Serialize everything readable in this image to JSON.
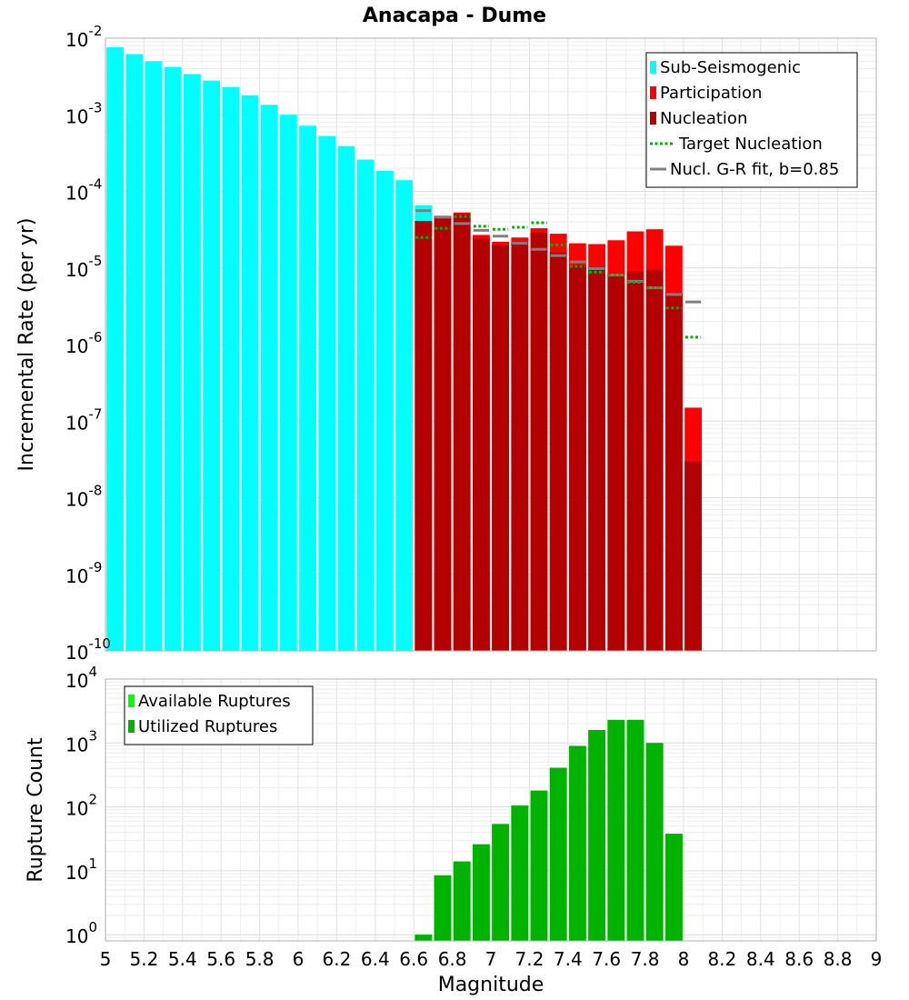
{
  "chart_data": [
    {
      "type": "bar",
      "title": "Anacapa - Dume",
      "xlabel": "",
      "ylabel": "Incremental Rate (per yr)",
      "yscale": "log",
      "ylim": [
        1e-10,
        0.01
      ],
      "xlim": [
        5,
        9
      ],
      "bin_width": 0.1,
      "y_ticks": [
        {
          "base": "10",
          "exp": "-2"
        },
        {
          "base": "10",
          "exp": "-3"
        },
        {
          "base": "10",
          "exp": "-4"
        },
        {
          "base": "10",
          "exp": "-5"
        },
        {
          "base": "10",
          "exp": "-6"
        },
        {
          "base": "10",
          "exp": "-7"
        },
        {
          "base": "10",
          "exp": "-8"
        },
        {
          "base": "10",
          "exp": "-9"
        },
        {
          "base": "10",
          "exp": "-10"
        }
      ],
      "legend_position": "top-right",
      "grid": true,
      "series": [
        {
          "name": "Sub-Seismogenic",
          "color": "#00ffff",
          "mark": "bar",
          "x": [
            5.05,
            5.15,
            5.25,
            5.35,
            5.45,
            5.55,
            5.65,
            5.75,
            5.85,
            5.95,
            6.05,
            6.15,
            6.25,
            6.35,
            6.45,
            6.55,
            6.65
          ],
          "values": [
            0.0076,
            0.0062,
            0.005,
            0.0042,
            0.0034,
            0.0028,
            0.0023,
            0.0018,
            0.00135,
            0.001,
            0.00072,
            0.00053,
            0.00039,
            0.00026,
            0.000185,
            0.00014,
            6.6e-05
          ]
        },
        {
          "name": "Participation",
          "color": "#ff0000",
          "mark": "bar",
          "x": [
            6.65,
            6.75,
            6.85,
            6.95,
            7.05,
            7.15,
            7.25,
            7.35,
            7.45,
            7.55,
            7.65,
            7.75,
            7.85,
            7.95,
            8.05
          ],
          "values": [
            4.1e-05,
            4.8e-05,
            5.3e-05,
            2.7e-05,
            2.2e-05,
            2.5e-05,
            3.3e-05,
            2.8e-05,
            2.1e-05,
            2.05e-05,
            2.3e-05,
            3e-05,
            3.2e-05,
            1.95e-05,
            1.5e-07
          ]
        },
        {
          "name": "Nucleation",
          "color": "#b30000",
          "mark": "bar",
          "x": [
            6.65,
            6.75,
            6.85,
            6.95,
            7.05,
            7.15,
            7.25,
            7.35,
            7.45,
            7.55,
            7.65,
            7.75,
            7.85,
            7.95,
            8.05
          ],
          "values": [
            4.1e-05,
            4.6e-05,
            5.1e-05,
            2.4e-05,
            2e-05,
            2.2e-05,
            2.9e-05,
            1.6e-05,
            1.1e-05,
            9.5e-06,
            8.5e-06,
            9e-06,
            9.5e-06,
            4.6e-06,
            3e-08
          ]
        },
        {
          "name": "Target Nucleation",
          "color": "#00b300",
          "mark": "dotted-step",
          "x": [
            6.65,
            6.75,
            6.85,
            6.95,
            7.05,
            7.15,
            7.25,
            7.35,
            7.45,
            7.55,
            7.65,
            7.75,
            7.85,
            7.95,
            8.05
          ],
          "values": [
            2.5e-05,
            3.3e-05,
            4.7e-05,
            3.5e-05,
            3.2e-05,
            3.4e-05,
            3.9e-05,
            2e-05,
            1.05e-05,
            8.8e-06,
            8e-06,
            6.5e-06,
            5.5e-06,
            3e-06,
            1.25e-06
          ]
        },
        {
          "name": "Nucl. G-R fit, b=0.85",
          "color": "#808080",
          "mark": "solid-step",
          "x": [
            6.65,
            6.75,
            6.85,
            6.95,
            7.05,
            7.15,
            7.25,
            7.35,
            7.45,
            7.55,
            7.65,
            7.75,
            7.85,
            7.95,
            8.05
          ],
          "values": [
            5.6e-05,
            4.6e-05,
            3.8e-05,
            3.1e-05,
            2.6e-05,
            2.1e-05,
            1.75e-05,
            1.45e-05,
            1.2e-05,
            9.8e-06,
            8.1e-06,
            6.7e-06,
            5.5e-06,
            4.5e-06,
            3.6e-06
          ]
        }
      ]
    },
    {
      "type": "bar",
      "xlabel": "Magnitude",
      "ylabel": "Rupture Count",
      "yscale": "log",
      "ylim": [
        0.8,
        10000
      ],
      "xlim": [
        5,
        9
      ],
      "bin_width": 0.1,
      "x_ticks": [
        "5",
        "5.2",
        "5.4",
        "5.6",
        "5.8",
        "6",
        "6.2",
        "6.4",
        "6.6",
        "6.8",
        "7",
        "7.2",
        "7.4",
        "7.6",
        "7.8",
        "8",
        "8.2",
        "8.4",
        "8.6",
        "8.8",
        "9"
      ],
      "y_ticks": [
        {
          "base": "10",
          "exp": "4"
        },
        {
          "base": "10",
          "exp": "3"
        },
        {
          "base": "10",
          "exp": "2"
        },
        {
          "base": "10",
          "exp": "1"
        },
        {
          "base": "10",
          "exp": "0"
        }
      ],
      "legend_position": "top-left",
      "grid": true,
      "series": [
        {
          "name": "Available Ruptures",
          "color": "#00ff00",
          "mark": "bar",
          "x": [
            6.65,
            6.75,
            6.85,
            6.95,
            7.05,
            7.15,
            7.25,
            7.35,
            7.45,
            7.55,
            7.65,
            7.75,
            7.85,
            7.95
          ],
          "values": [
            1,
            8.5,
            14,
            26,
            54,
            105,
            180,
            410,
            900,
            1600,
            2300,
            2300,
            1000,
            38
          ]
        },
        {
          "name": "Utilized Ruptures",
          "color": "#00b300",
          "mark": "bar",
          "x": [
            6.65,
            6.75,
            6.85,
            6.95,
            7.05,
            7.15,
            7.25,
            7.35,
            7.45,
            7.55,
            7.65,
            7.75,
            7.85,
            7.95
          ],
          "values": [
            1,
            8.5,
            14,
            26,
            54,
            105,
            180,
            410,
            900,
            1600,
            2300,
            2300,
            1000,
            38
          ]
        }
      ]
    }
  ]
}
